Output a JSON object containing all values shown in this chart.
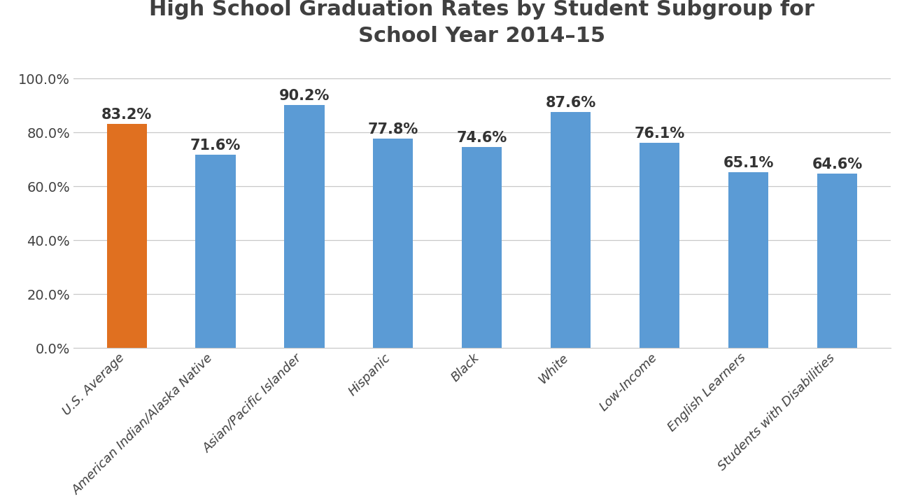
{
  "title": "High School Graduation Rates by Student Subgroup for\nSchool Year 2014–15",
  "categories": [
    "U.S. Average",
    "American Indian/Alaska Native",
    "Asian/Pacific Islander",
    "Hispanic",
    "Black",
    "White",
    "Low-Income",
    "English Learners",
    "Students with Disabilities"
  ],
  "values": [
    83.2,
    71.6,
    90.2,
    77.8,
    74.6,
    87.6,
    76.1,
    65.1,
    64.6
  ],
  "bar_colors": [
    "#E07020",
    "#5B9BD5",
    "#5B9BD5",
    "#5B9BD5",
    "#5B9BD5",
    "#5B9BD5",
    "#5B9BD5",
    "#5B9BD5",
    "#5B9BD5"
  ],
  "ylim": [
    0,
    107
  ],
  "yticks": [
    0,
    20,
    40,
    60,
    80,
    100
  ],
  "ytick_labels": [
    "0.0%",
    "20.0%",
    "40.0%",
    "60.0%",
    "80.0%",
    "100.0%"
  ],
  "background_color": "#FFFFFF",
  "title_fontsize": 22,
  "bar_label_fontsize": 15,
  "tick_fontsize": 14,
  "xtick_fontsize": 13,
  "title_color": "#404040",
  "ytick_color": "#404040",
  "xtick_color": "#404040",
  "bar_label_color": "#333333",
  "grid_color": "#C8C8C8",
  "bar_width": 0.45
}
